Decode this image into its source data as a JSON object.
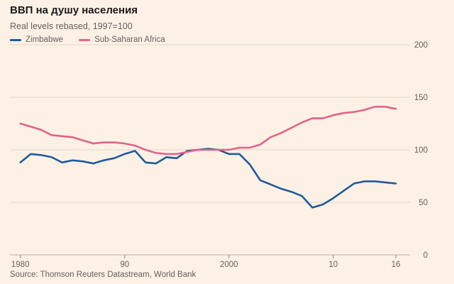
{
  "header": {
    "title": "ВВП на душу населения",
    "subtitle": "Real levels rebased, 1997=100"
  },
  "legend": [
    {
      "label": "Zimbabwe",
      "color": "#1f5b9c"
    },
    {
      "label": "Sub-Saharan Africa",
      "color": "#e0638a"
    }
  ],
  "footer": {
    "source": "Source: Thomson Reuters Datastream, World Bank"
  },
  "chart_data": {
    "type": "line",
    "title": "ВВП на душу населения",
    "subtitle": "Real levels rebased, 1997=100",
    "xlabel": "",
    "ylabel": "",
    "xlim": [
      1979,
      2017
    ],
    "ylim": [
      0,
      200
    ],
    "x_ticks": [
      {
        "value": 1980,
        "label": "1980"
      },
      {
        "value": 1990,
        "label": "90"
      },
      {
        "value": 2000,
        "label": "2000"
      },
      {
        "value": 2010,
        "label": "10"
      },
      {
        "value": 2016,
        "label": "16"
      }
    ],
    "y_ticks": [
      {
        "value": 0,
        "label": "0"
      },
      {
        "value": 50,
        "label": "50"
      },
      {
        "value": 100,
        "label": "100"
      },
      {
        "value": 150,
        "label": "150"
      },
      {
        "value": 200,
        "label": "200"
      }
    ],
    "grid": "horizontal",
    "legend_position": "top-left",
    "x": [
      1980,
      1981,
      1982,
      1983,
      1984,
      1985,
      1986,
      1987,
      1988,
      1989,
      1990,
      1991,
      1992,
      1993,
      1994,
      1995,
      1996,
      1997,
      1998,
      1999,
      2000,
      2001,
      2002,
      2003,
      2004,
      2005,
      2006,
      2007,
      2008,
      2009,
      2010,
      2011,
      2012,
      2013,
      2014,
      2015,
      2016
    ],
    "series": [
      {
        "name": "Zimbabwe",
        "color": "#1f5b9c",
        "values": [
          88,
          96,
          95,
          93,
          88,
          90,
          89,
          87,
          90,
          92,
          96,
          99,
          88,
          87,
          93,
          92,
          99,
          100,
          101,
          100,
          96,
          96,
          86,
          71,
          67,
          63,
          60,
          56,
          45,
          48,
          54,
          61,
          68,
          70,
          70,
          69,
          68
        ]
      },
      {
        "name": "Sub-Saharan Africa",
        "color": "#e0638a",
        "values": [
          125,
          122,
          119,
          114,
          113,
          112,
          109,
          106,
          107,
          107,
          106,
          104,
          100,
          97,
          96,
          96,
          98,
          100,
          100,
          100,
          100,
          102,
          102,
          105,
          112,
          116,
          121,
          126,
          130,
          130,
          133,
          135,
          136,
          138,
          141,
          141,
          139
        ]
      }
    ]
  }
}
